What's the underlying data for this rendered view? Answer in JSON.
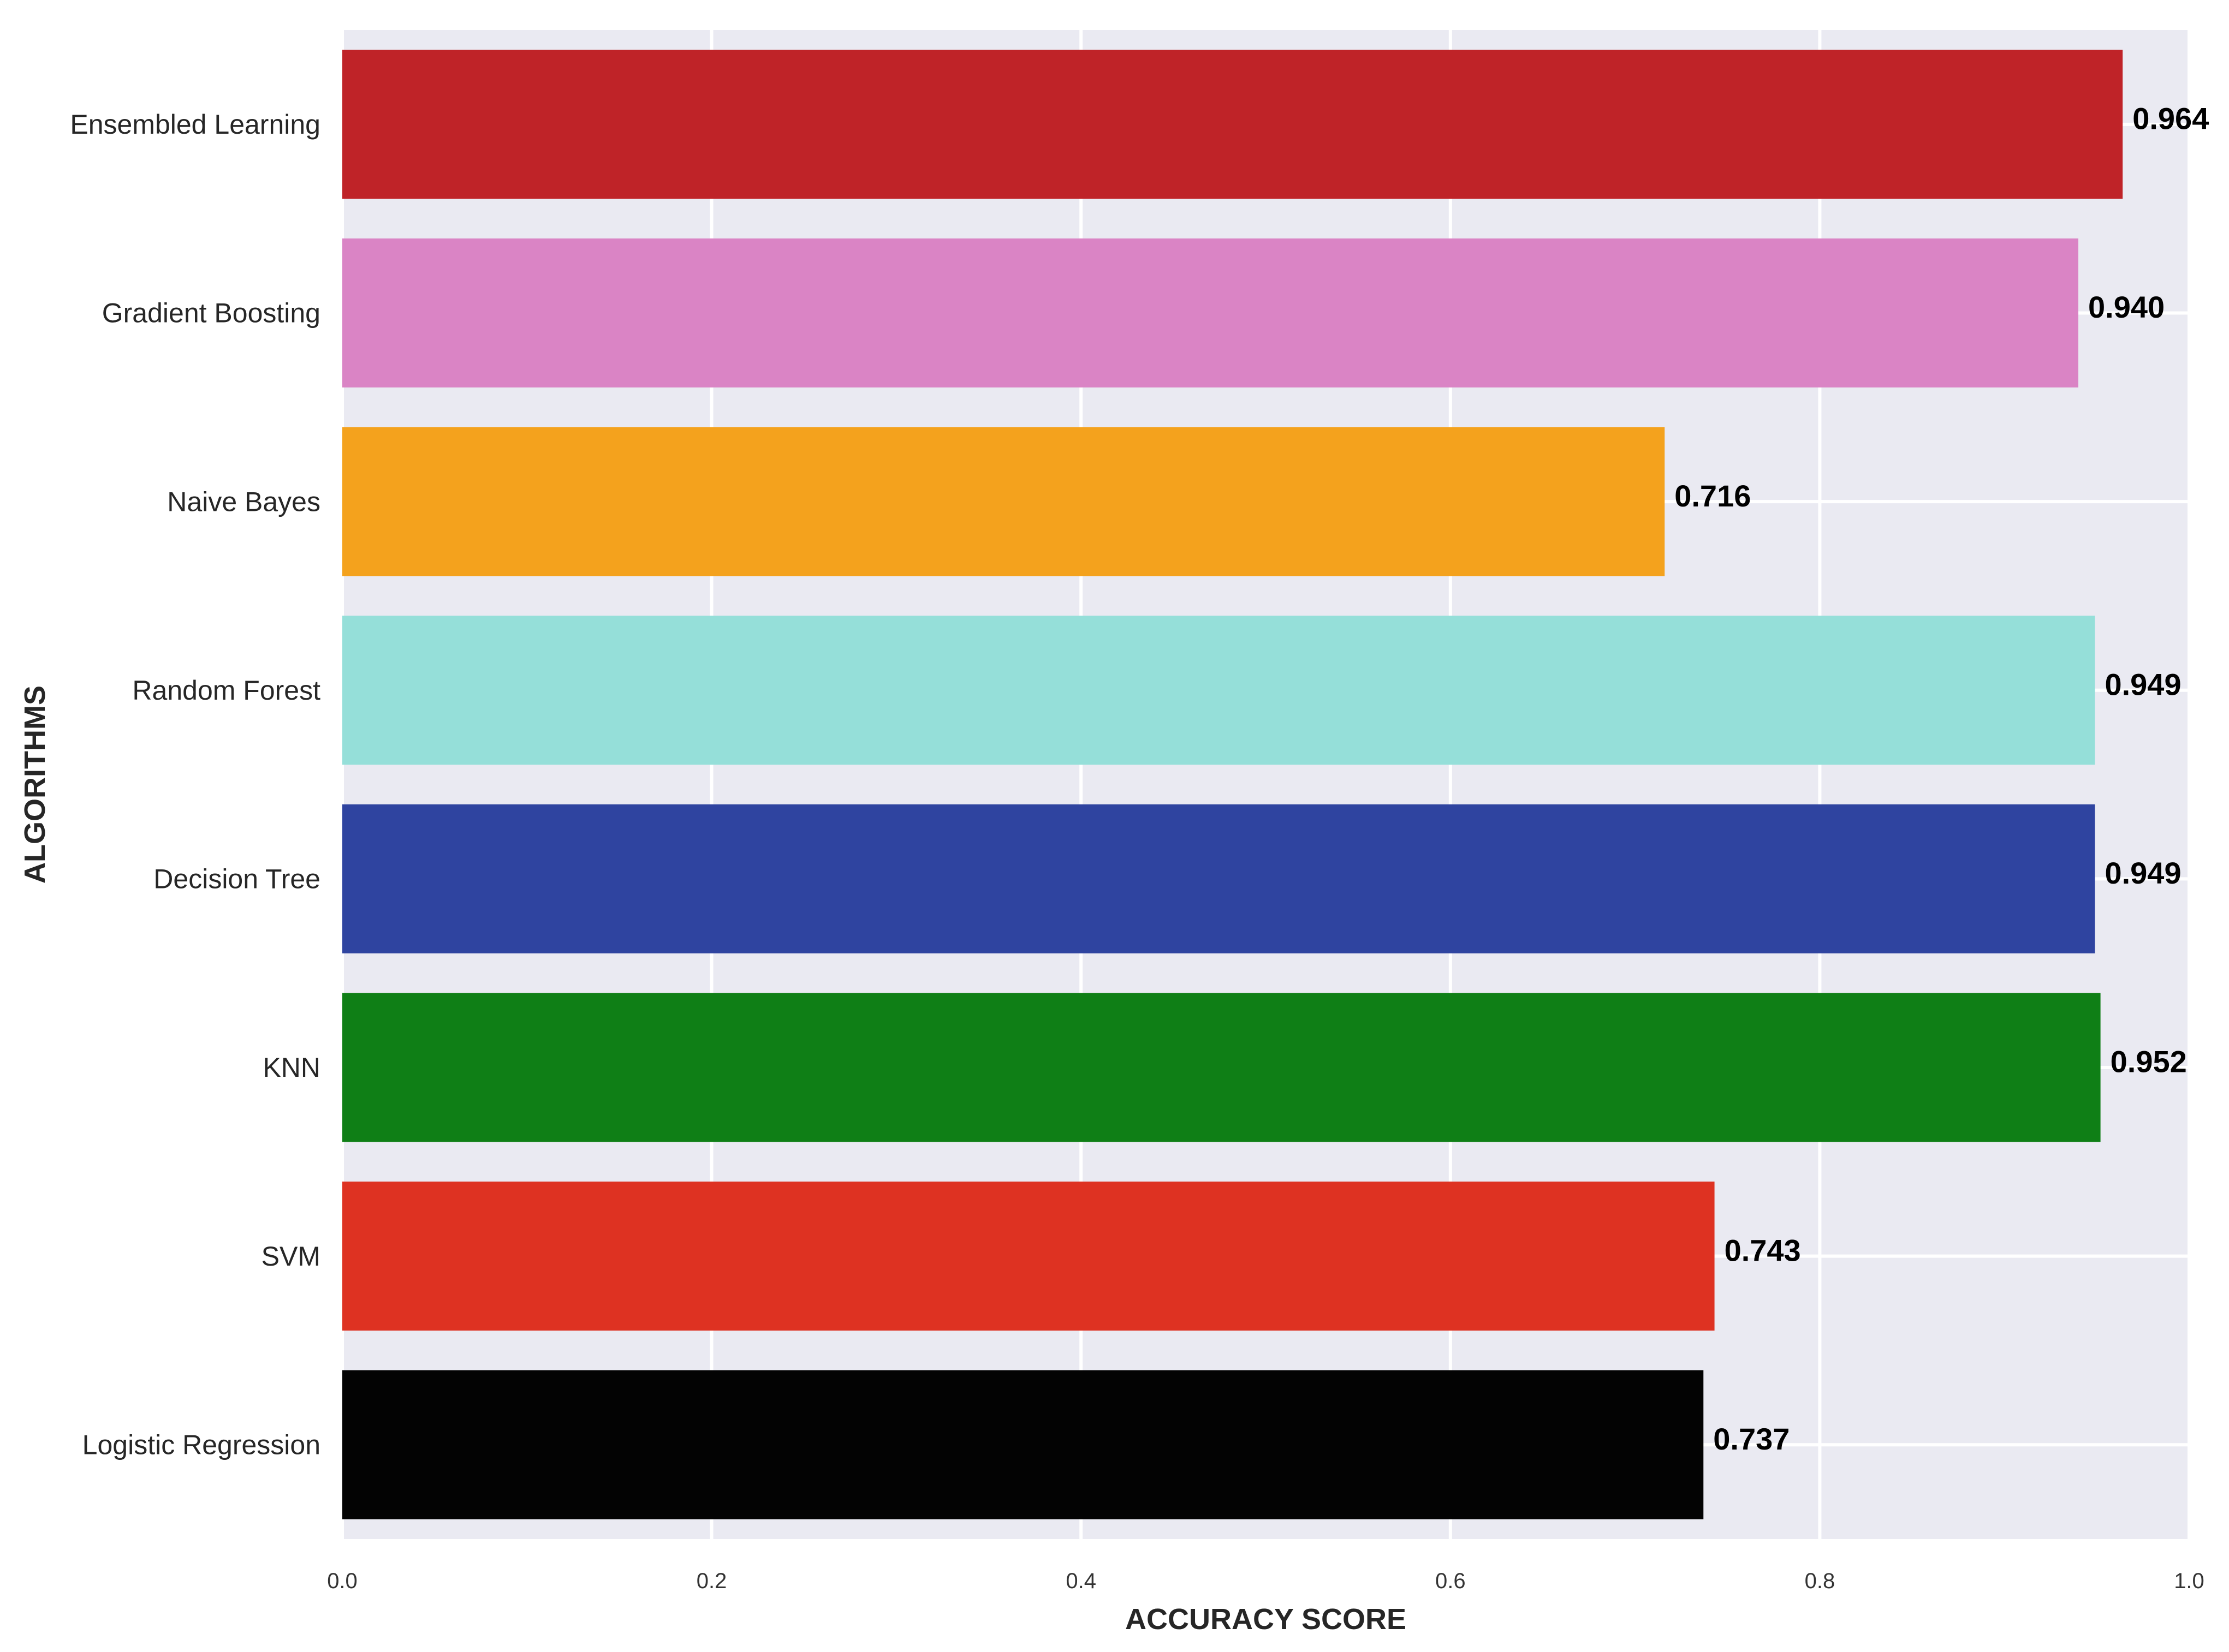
{
  "chart_data": {
    "type": "bar",
    "orientation": "horizontal",
    "title": "",
    "xlabel": "ACCURACY SCORE",
    "ylabel": "ALGORITHMS",
    "xlim": [
      0.0,
      1.0
    ],
    "xticks": [
      "0.0",
      "0.2",
      "0.4",
      "0.6",
      "0.8",
      "1.0"
    ],
    "grid": true,
    "categories": [
      "Ensembled Learning",
      "Gradient Boosting",
      "Naive Bayes",
      "Random Forest",
      "Decision Tree",
      "KNN",
      "SVM",
      "Logistic Regression"
    ],
    "values": [
      0.964,
      0.94,
      0.716,
      0.949,
      0.949,
      0.952,
      0.743,
      0.737
    ],
    "value_labels": [
      "0.964",
      "0.940",
      "0.716",
      "0.949",
      "0.949",
      "0.952",
      "0.743",
      "0.737"
    ],
    "colors": [
      "#BF2328",
      "#DA84C5",
      "#F4A21D",
      "#95DFD9",
      "#2F44A0",
      "#0F7F16",
      "#DE3222",
      "#030303"
    ],
    "background": "#EAEAF2",
    "gridline_color": "#FFFFFF"
  }
}
